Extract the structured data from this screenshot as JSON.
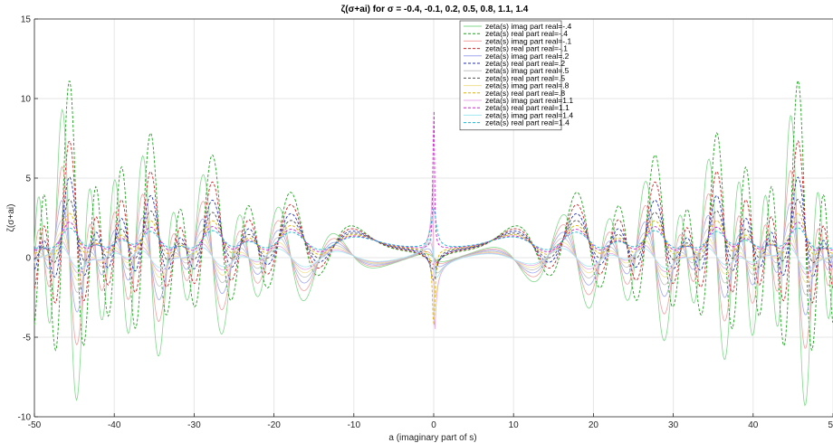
{
  "chart_data": {
    "type": "line",
    "title": "ζ(σ+ai) for σ = -0.4, -0.1, 0.2, 0.5, 0.8, 1.1, 1.4",
    "xlabel": "a (imaginary part of s)",
    "ylabel": "ζ(σ+ai)",
    "xlim": [
      -50,
      50
    ],
    "ylim": [
      -10,
      15
    ],
    "grid": true,
    "legend_position": "top-center",
    "x_ticks": [
      "-50",
      "-40",
      "-30",
      "-20",
      "-10",
      "0",
      "10",
      "20",
      "30",
      "40",
      "50"
    ],
    "y_ticks": [
      "-10",
      "-5",
      "0",
      "5",
      "10",
      "15"
    ],
    "series": [
      {
        "name": "zeta(s) imag part real=-.4",
        "sigma": -0.4,
        "part": "imag",
        "style": "solid",
        "color": "#7fd98a"
      },
      {
        "name": "zeta(s) real part real=-.4",
        "sigma": -0.4,
        "part": "real",
        "style": "dashed",
        "color": "#1aa31a"
      },
      {
        "name": "zeta(s) imag part real=-.1",
        "sigma": -0.1,
        "part": "imag",
        "style": "solid",
        "color": "#f2a0a0"
      },
      {
        "name": "zeta(s) real part real=-.1",
        "sigma": -0.1,
        "part": "real",
        "style": "dashed",
        "color": "#d42020"
      },
      {
        "name": "zeta(s) imag part real=.2",
        "sigma": 0.2,
        "part": "imag",
        "style": "solid",
        "color": "#a0a8f0"
      },
      {
        "name": "zeta(s) real part real=.2",
        "sigma": 0.2,
        "part": "real",
        "style": "dashed",
        "color": "#2030c8"
      },
      {
        "name": "zeta(s) imag part real=.5",
        "sigma": 0.5,
        "part": "imag",
        "style": "solid",
        "color": "#c2c2c2"
      },
      {
        "name": "zeta(s) real part real=.5",
        "sigma": 0.5,
        "part": "real",
        "style": "dashed",
        "color": "#505050"
      },
      {
        "name": "zeta(s) imag part real=.8",
        "sigma": 0.8,
        "part": "imag",
        "style": "solid",
        "color": "#f0e090"
      },
      {
        "name": "zeta(s) real part real=.8",
        "sigma": 0.8,
        "part": "real",
        "style": "dashed",
        "color": "#e0b000"
      },
      {
        "name": "zeta(s) imag part real=1.1",
        "sigma": 1.1,
        "part": "imag",
        "style": "solid",
        "color": "#e8a8e8"
      },
      {
        "name": "zeta(s) real part real=1.1",
        "sigma": 1.1,
        "part": "real",
        "style": "dashed",
        "color": "#d020d0"
      },
      {
        "name": "zeta(s) imag part real=1.4",
        "sigma": 1.4,
        "part": "imag",
        "style": "solid",
        "color": "#a0e8f0"
      },
      {
        "name": "zeta(s) real part real=1.4",
        "sigma": 1.4,
        "part": "real",
        "style": "dashed",
        "color": "#10b8d8"
      }
    ]
  }
}
